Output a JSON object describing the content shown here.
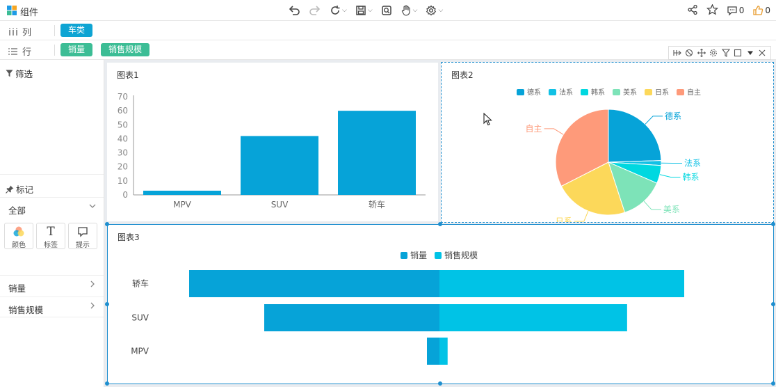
{
  "app": {
    "title": "组件"
  },
  "toolbar": {
    "buttons": [
      "undo-icon",
      "redo-icon",
      "refresh-icon",
      "save-icon",
      "preview-icon",
      "hand-icon",
      "settings-icon"
    ],
    "right": {
      "comment_count": "0",
      "like_count": "0"
    }
  },
  "shelves": {
    "columns": {
      "label": "列",
      "pills": [
        "车类"
      ]
    },
    "rows": {
      "label": "行",
      "pills": [
        "销量",
        "销售规模"
      ]
    }
  },
  "sidebar": {
    "filter_title": "筛选",
    "mark_title": "标记",
    "mark_type": "全部",
    "mark_buttons": [
      {
        "label": "颜色",
        "icon": "color-icon"
      },
      {
        "label": "标签",
        "icon": "text-icon"
      },
      {
        "label": "提示",
        "icon": "tooltip-icon"
      }
    ],
    "fields": [
      "销量",
      "销售规模"
    ]
  },
  "colors": {
    "primary": "#06a3d8",
    "secondary": "#00c3e6",
    "pill_blue": "#0ea4d3",
    "pill_green": "#3cbd95",
    "pie": [
      "#06a3d8",
      "#11c1e5",
      "#00d8e0",
      "#7de3b8",
      "#fcd85a",
      "#fe9a7a"
    ]
  },
  "chart_data": [
    {
      "id": "chart1",
      "title": "图表1",
      "type": "bar",
      "categories": [
        "MPV",
        "SUV",
        "轿车"
      ],
      "values": [
        3,
        42,
        60
      ],
      "ylim": [
        0,
        70
      ],
      "yticks": [
        0,
        10,
        20,
        30,
        40,
        50,
        60,
        70
      ],
      "grid": false
    },
    {
      "id": "chart2",
      "title": "图表2",
      "type": "pie",
      "legend": [
        "德系",
        "法系",
        "韩系",
        "美系",
        "日系",
        "自主"
      ],
      "slices": [
        {
          "label": "德系",
          "value": 24.5
        },
        {
          "label": "法系",
          "value": 1.5
        },
        {
          "label": "韩系",
          "value": 5.5
        },
        {
          "label": "美系",
          "value": 13.5
        },
        {
          "label": "日系",
          "value": 22.5
        },
        {
          "label": "自主",
          "value": 32.5
        }
      ],
      "legend_position": "top"
    },
    {
      "id": "chart3",
      "title": "图表3",
      "type": "bar",
      "orientation": "horizontal-butterfly",
      "categories": [
        "轿车",
        "SUV",
        "MPV"
      ],
      "series": [
        {
          "name": "销量",
          "values": [
            60,
            42,
            3
          ]
        },
        {
          "name": "销售规模",
          "values": [
            60,
            46,
            2
          ]
        }
      ],
      "legend_position": "top"
    }
  ]
}
